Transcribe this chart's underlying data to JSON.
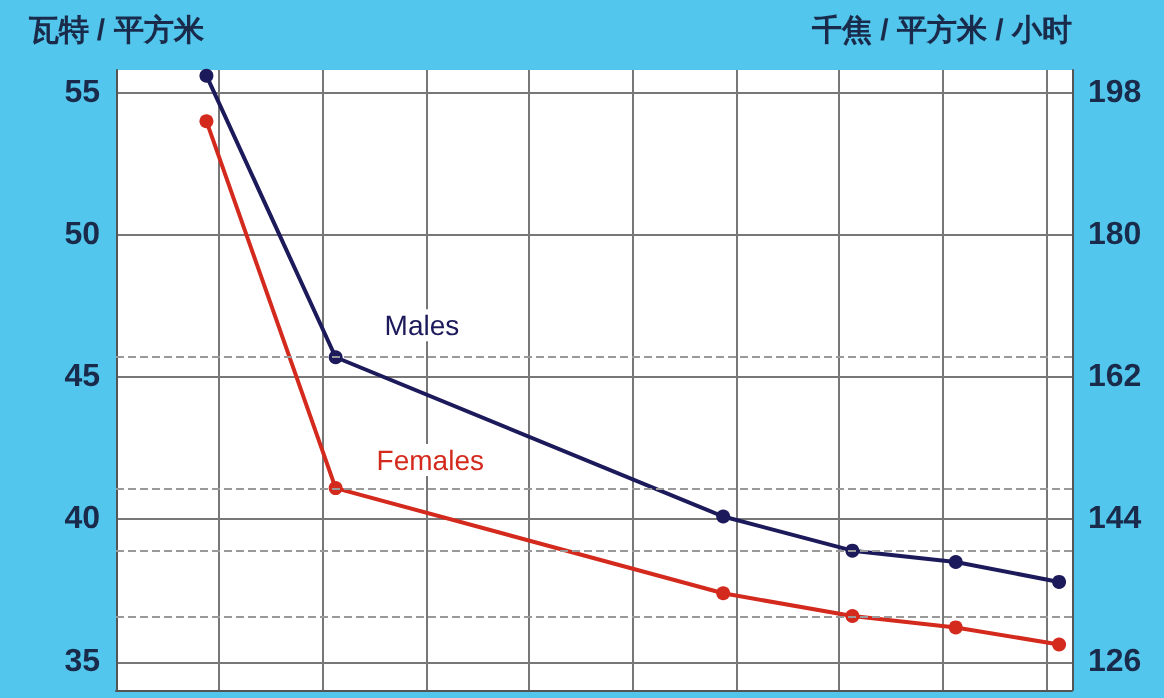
{
  "chart_data": {
    "type": "line",
    "ylabel": "瓦特 / 平方米",
    "y2label": "千焦 / 平方米 / 小时",
    "categories": [
      null,
      null,
      null,
      null,
      null,
      null,
      null,
      null,
      null,
      null,
      null,
      null,
      null,
      null,
      null,
      null,
      null,
      null,
      null,
      null,
      null,
      null,
      null,
      null,
      null,
      null,
      null,
      null,
      null,
      null,
      null,
      null,
      null,
      null,
      null,
      null,
      null
    ],
    "ylim": [
      34,
      55.8
    ],
    "yticks": [
      35,
      40,
      45,
      50,
      55
    ],
    "y2lim": [
      122.4,
      200.9
    ],
    "y2ticks": [
      126,
      144,
      162,
      180,
      198
    ],
    "tick_labels": "y",
    "grid": true,
    "marker": "circle",
    "line_style": "solid",
    "series": [
      {
        "name": "Males",
        "color": "#1c1a5a",
        "values": [
          null,
          null,
          null,
          55.6,
          null,
          null,
          null,
          null,
          45.7,
          null,
          null,
          null,
          null,
          null,
          null,
          null,
          null,
          null,
          null,
          null,
          null,
          null,
          null,
          40.1,
          null,
          null,
          null,
          null,
          38.9,
          null,
          null,
          null,
          38.5,
          null,
          null,
          null,
          37.8
        ]
      },
      {
        "name": "Females",
        "color": "#d42a1e",
        "values": [
          null,
          null,
          null,
          54.0,
          null,
          null,
          null,
          null,
          41.1,
          null,
          null,
          null,
          null,
          null,
          null,
          null,
          null,
          null,
          null,
          null,
          null,
          null,
          null,
          37.4,
          null,
          null,
          null,
          null,
          36.6,
          null,
          null,
          null,
          36.2,
          null,
          null,
          null,
          35.6
        ]
      }
    ],
    "ref_lines": [
      {
        "axis": "y",
        "value": 45.7,
        "color": "#999999",
        "line_style": "dashed"
      },
      {
        "axis": "y",
        "value": 41.1,
        "color": "#999999",
        "line_style": "dashed"
      },
      {
        "axis": "y",
        "value": 38.9,
        "color": "#999999",
        "line_style": "dashed"
      },
      {
        "axis": "y",
        "value": 36.6,
        "color": "#999999",
        "line_style": "dashed"
      }
    ]
  }
}
